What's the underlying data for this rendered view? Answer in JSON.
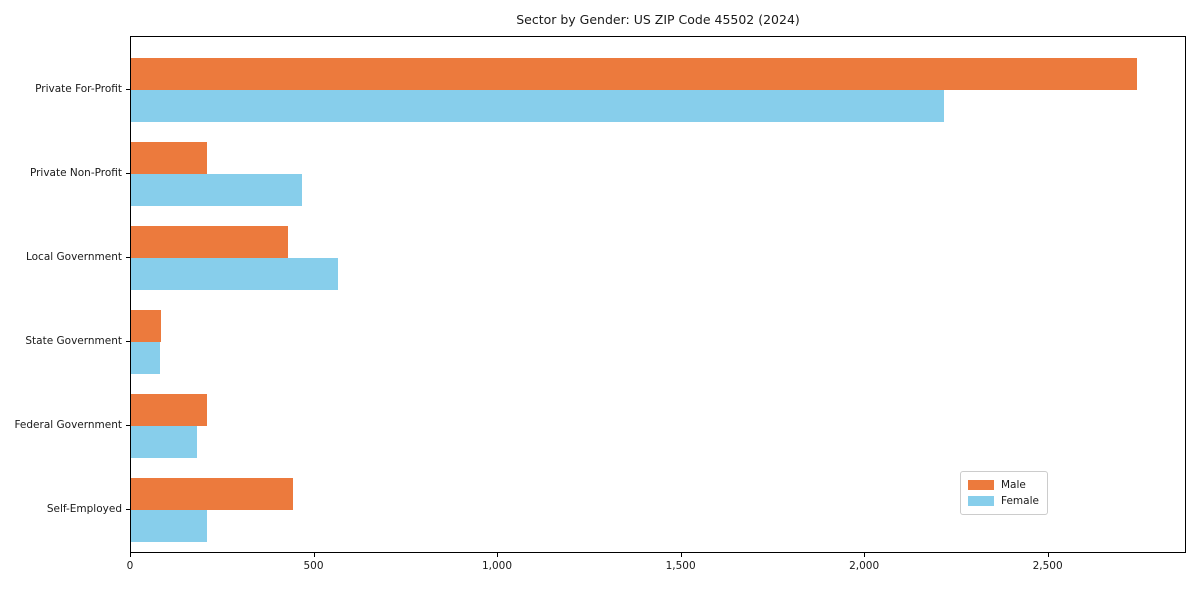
{
  "chart_data": {
    "type": "bar",
    "orientation": "horizontal",
    "title": "Sector by Gender: US ZIP Code 45502 (2024)",
    "xlabel": "",
    "ylabel": "",
    "categories": [
      "Private For-Profit",
      "Private Non-Profit",
      "Local Government",
      "State Government",
      "Federal Government",
      "Self-Employed"
    ],
    "series": [
      {
        "name": "Male",
        "color": "#EC7A3D",
        "values": [
          2740,
          208,
          427,
          82,
          208,
          441
        ]
      },
      {
        "name": "Female",
        "color": "#87CEEB",
        "values": [
          2215,
          467,
          564,
          80,
          181,
          207
        ]
      }
    ],
    "xlim": [
      0,
      2877
    ],
    "x_ticks": [
      {
        "value": 0,
        "label": "0"
      },
      {
        "value": 500,
        "label": "500"
      },
      {
        "value": 1000,
        "label": "1,000"
      },
      {
        "value": 1500,
        "label": "1,500"
      },
      {
        "value": 2000,
        "label": "2,000"
      },
      {
        "value": 2500,
        "label": "2,500"
      }
    ],
    "grid": false,
    "legend_position": "lower right"
  }
}
